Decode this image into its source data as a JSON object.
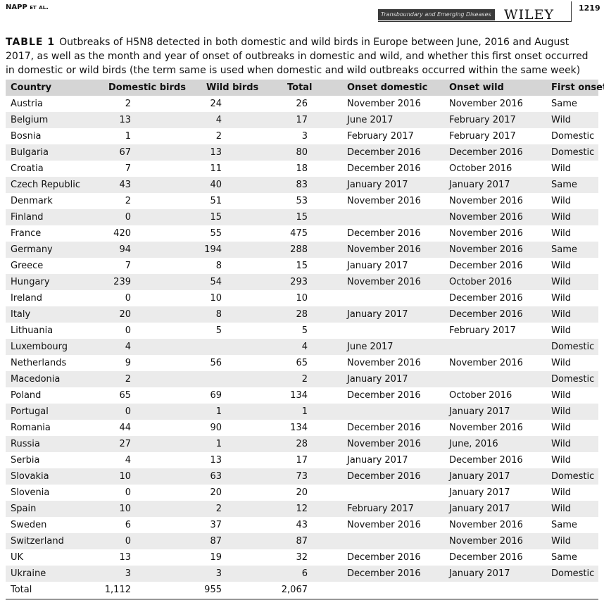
{
  "header": {
    "author": "NAPP et al.",
    "journal": "Transboundary and Emerging Diseases",
    "publisher": "WILEY",
    "page": "1219"
  },
  "caption": {
    "label": "TABLE 1",
    "text": "Outbreaks of H5N8 detected in both domestic and wild birds in Europe between June, 2016 and August 2017, as well as the month and year of onset of outbreaks in domestic and wild, and whether this first onset occurred in domestic or wild birds (the term same is used when domestic and wild outbreaks occurred within the same week)"
  },
  "table": {
    "columns": [
      "Country",
      "Domestic birds",
      "Wild birds",
      "Total",
      "Onset domestic",
      "Onset wild",
      "First onset"
    ],
    "rows": [
      [
        "Austria",
        "2",
        "24",
        "26",
        "November 2016",
        "November 2016",
        "Same"
      ],
      [
        "Belgium",
        "13",
        "4",
        "17",
        "June 2017",
        "February 2017",
        "Wild"
      ],
      [
        "Bosnia",
        "1",
        "2",
        "3",
        "February 2017",
        "February 2017",
        "Domestic"
      ],
      [
        "Bulgaria",
        "67",
        "13",
        "80",
        "December 2016",
        "December 2016",
        "Domestic"
      ],
      [
        "Croatia",
        "7",
        "11",
        "18",
        "December 2016",
        "October 2016",
        "Wild"
      ],
      [
        "Czech Republic",
        "43",
        "40",
        "83",
        "January 2017",
        "January 2017",
        "Same"
      ],
      [
        "Denmark",
        "2",
        "51",
        "53",
        "November 2016",
        "November 2016",
        "Wild"
      ],
      [
        "Finland",
        "0",
        "15",
        "15",
        null,
        "November 2016",
        "Wild"
      ],
      [
        "France",
        "420",
        "55",
        "475",
        "December 2016",
        "November 2016",
        "Wild"
      ],
      [
        "Germany",
        "94",
        "194",
        "288",
        "November 2016",
        "November 2016",
        "Same"
      ],
      [
        "Greece",
        "7",
        "8",
        "15",
        "January 2017",
        "December 2016",
        "Wild"
      ],
      [
        "Hungary",
        "239",
        "54",
        "293",
        "November 2016",
        "October 2016",
        "Wild"
      ],
      [
        "Ireland",
        "0",
        "10",
        "10",
        null,
        "December 2016",
        "Wild"
      ],
      [
        "Italy",
        "20",
        "8",
        "28",
        "January 2017",
        "December 2016",
        "Wild"
      ],
      [
        "Lithuania",
        "0",
        "5",
        "5",
        null,
        "February 2017",
        "Wild"
      ],
      [
        "Luxembourg",
        "4",
        null,
        "4",
        "June 2017",
        null,
        "Domestic"
      ],
      [
        "Netherlands",
        "9",
        "56",
        "65",
        "November 2016",
        "November 2016",
        "Wild"
      ],
      [
        "Macedonia",
        "2",
        null,
        "2",
        "January 2017",
        null,
        "Domestic"
      ],
      [
        "Poland",
        "65",
        "69",
        "134",
        "December 2016",
        "October 2016",
        "Wild"
      ],
      [
        "Portugal",
        "0",
        "1",
        "1",
        null,
        "January 2017",
        "Wild"
      ],
      [
        "Romania",
        "44",
        "90",
        "134",
        "December 2016",
        "November 2016",
        "Wild"
      ],
      [
        "Russia",
        "27",
        "1",
        "28",
        "November 2016",
        "June, 2016",
        "Wild"
      ],
      [
        "Serbia",
        "4",
        "13",
        "17",
        "January 2017",
        "December 2016",
        "Wild"
      ],
      [
        "Slovakia",
        "10",
        "63",
        "73",
        "December 2016",
        "January 2017",
        "Domestic"
      ],
      [
        "Slovenia",
        "0",
        "20",
        "20",
        null,
        "January 2017",
        "Wild"
      ],
      [
        "Spain",
        "10",
        "2",
        "12",
        "February 2017",
        "January 2017",
        "Wild"
      ],
      [
        "Sweden",
        "6",
        "37",
        "43",
        "November 2016",
        "November 2016",
        "Same"
      ],
      [
        "Switzerland",
        "0",
        "87",
        "87",
        null,
        "November 2016",
        "Wild"
      ],
      [
        "UK",
        "13",
        "19",
        "32",
        "December 2016",
        "December 2016",
        "Same"
      ],
      [
        "Ukraine",
        "3",
        "3",
        "6",
        "December 2016",
        "January 2017",
        "Domestic"
      ]
    ],
    "total": [
      "Total",
      "1,112",
      "955",
      "2,067"
    ]
  }
}
